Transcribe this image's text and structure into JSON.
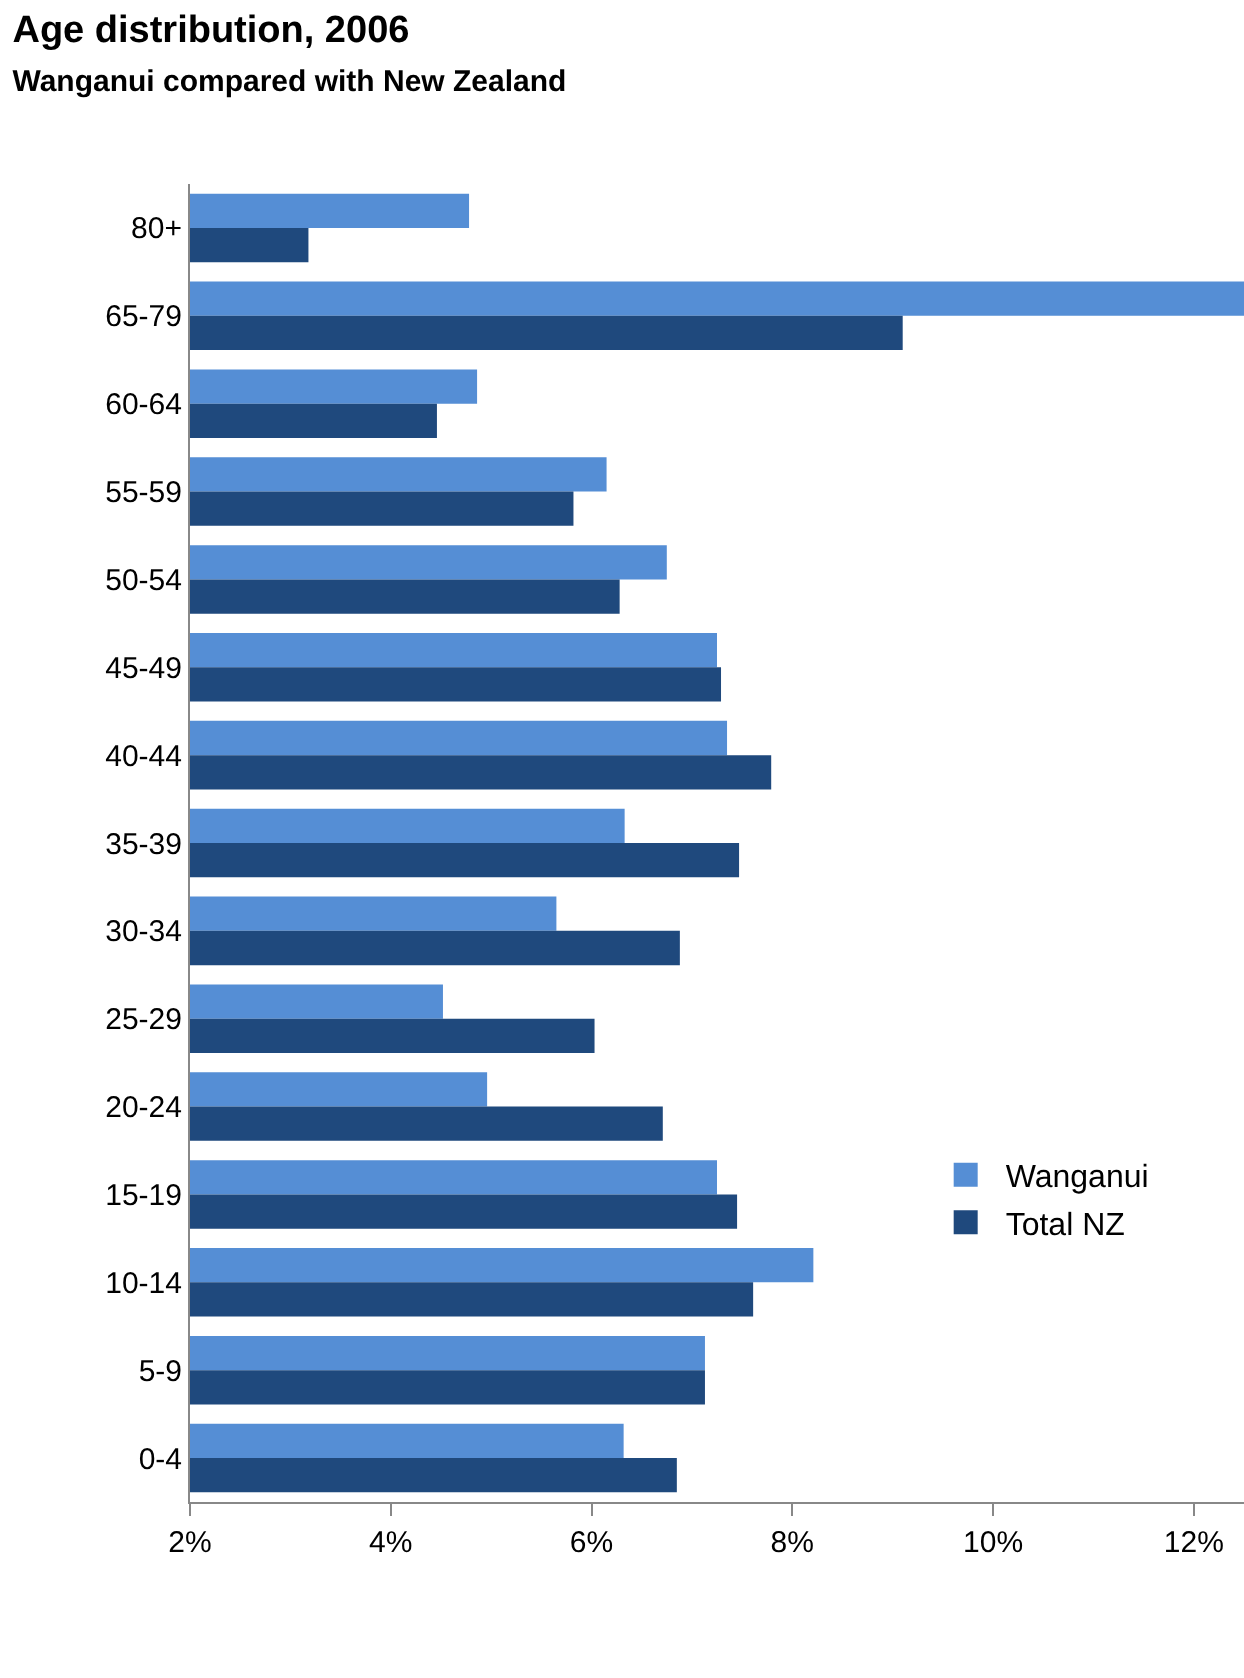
{
  "chart_data": {
    "type": "bar",
    "orientation": "horizontal",
    "title": "Age distribution, 2006",
    "subtitle": "Wanganui compared with New Zealand",
    "categories": [
      "80+",
      "65-79",
      "60-64",
      "55-59",
      "50-54",
      "45-49",
      "40-44",
      "35-39",
      "30-34",
      "25-29",
      "20-24",
      "15-19",
      "10-14",
      "5-9",
      "0-4"
    ],
    "series": [
      {
        "name": "Wanganui",
        "color": "#558ed5",
        "values": [
          4.78,
          12.5,
          4.86,
          6.15,
          6.75,
          7.25,
          7.35,
          6.33,
          5.65,
          4.52,
          4.96,
          7.25,
          8.21,
          7.13,
          6.32
        ]
      },
      {
        "name": "Total NZ",
        "color": "#1f497d",
        "values": [
          3.18,
          9.1,
          4.46,
          5.82,
          6.28,
          7.29,
          7.79,
          7.47,
          6.88,
          6.03,
          6.71,
          7.45,
          7.61,
          7.13,
          6.85
        ]
      }
    ],
    "xlim": [
      2,
      12.5
    ],
    "xticks": [
      {
        "value": 2,
        "label": "2%"
      },
      {
        "value": 4,
        "label": "4%"
      },
      {
        "value": 6,
        "label": "6%"
      },
      {
        "value": 8,
        "label": "8%"
      },
      {
        "value": 10,
        "label": "10%"
      },
      {
        "value": 12,
        "label": "12%"
      }
    ],
    "legend": "bottom right"
  }
}
